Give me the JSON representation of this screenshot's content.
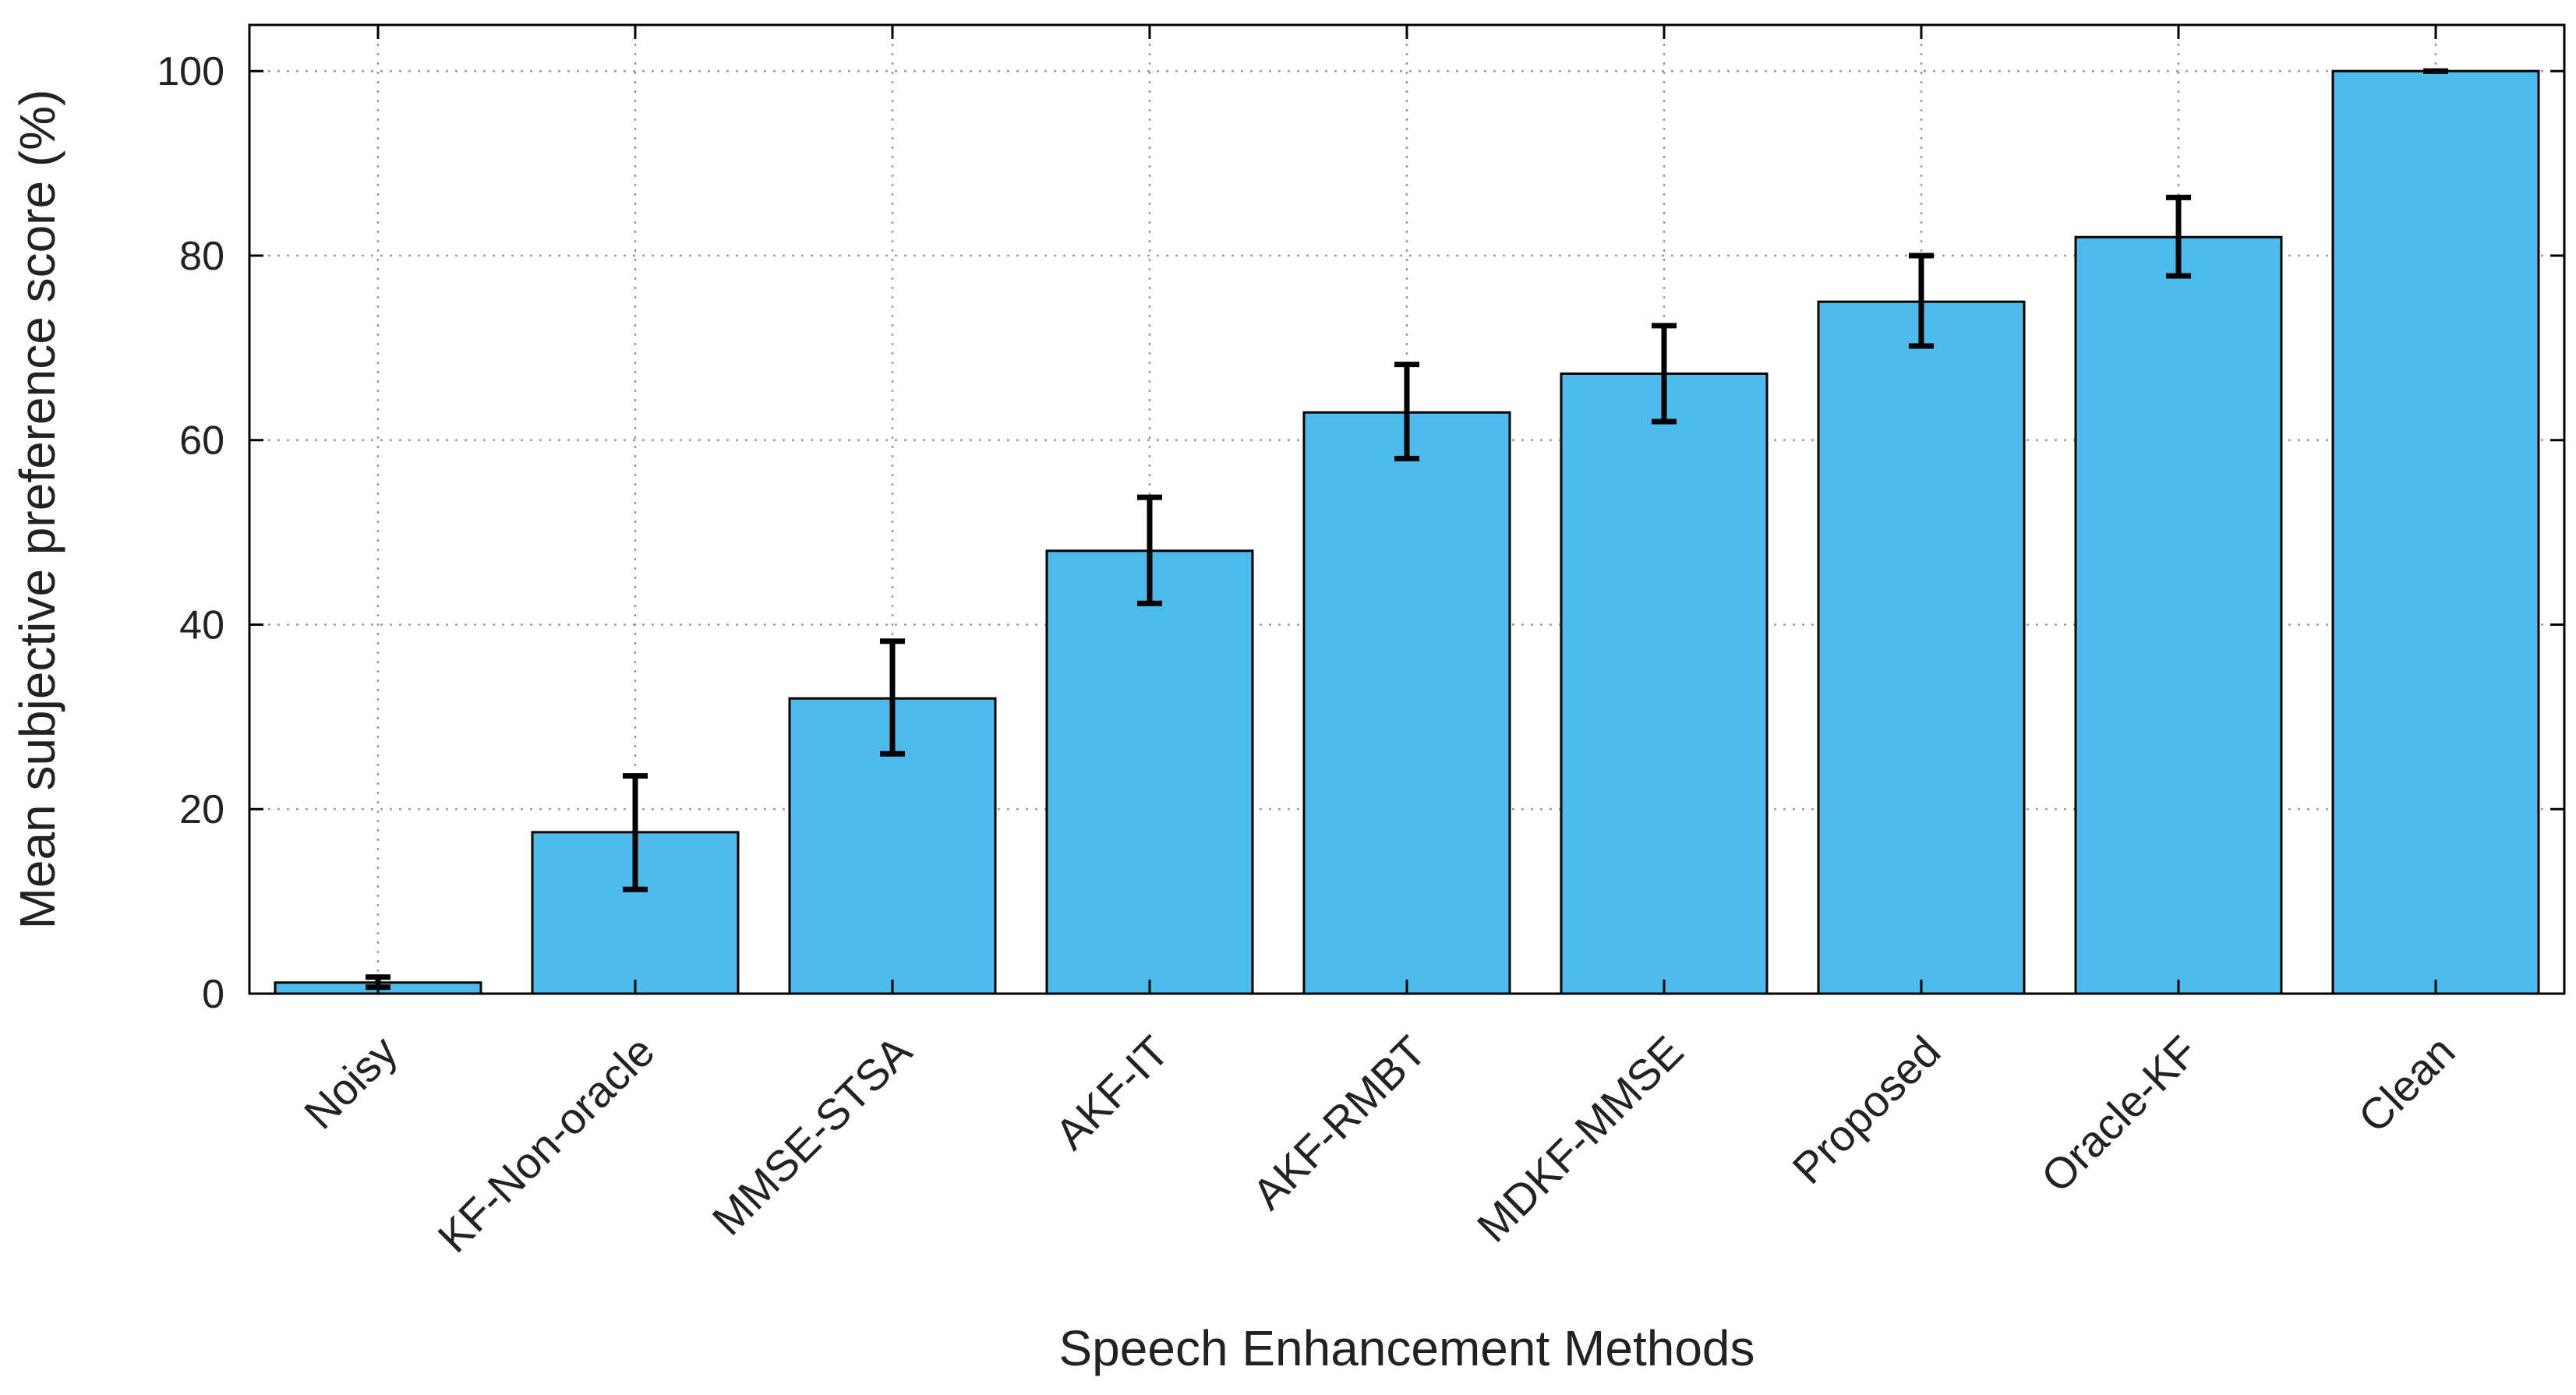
{
  "chart_data": {
    "type": "bar",
    "title": "",
    "xlabel": "Speech Enhancement Methods",
    "ylabel": "Mean subjective preference score (%)",
    "categories": [
      "Noisy",
      "KF-Non-oracle",
      "MMSE-STSA",
      "AKF-IT",
      "AKF-RMBT",
      "MDKF-MMSE",
      "Proposed",
      "Oracle-KF",
      "Clean"
    ],
    "values": [
      1.2,
      17.5,
      32,
      48,
      63,
      67.2,
      75,
      82,
      100
    ],
    "error_low": [
      0.7,
      11.3,
      26,
      42.3,
      58,
      62,
      70.2,
      77.8,
      100
    ],
    "error_high": [
      1.8,
      23.6,
      38.2,
      53.8,
      68.2,
      72.4,
      80,
      86.3,
      100
    ],
    "ylim": [
      0,
      105
    ],
    "yticks": [
      0,
      20,
      40,
      60,
      80,
      100
    ],
    "grid": true,
    "bar_color": "#4DBBEB",
    "error_color": "#000000"
  }
}
